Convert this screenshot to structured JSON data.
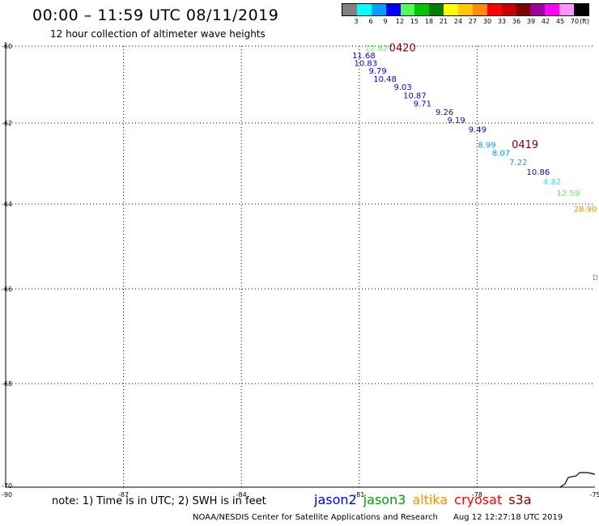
{
  "header": {
    "title": "00:00 – 11:59 UTC 08/11/2019",
    "subtitle": "12 hour collection of altimeter wave heights"
  },
  "legend": {
    "unit": "(ft)",
    "bins": [
      {
        "color": "#808080",
        "label": "3"
      },
      {
        "color": "#00ffff",
        "label": "6"
      },
      {
        "color": "#00a0ff",
        "label": "9"
      },
      {
        "color": "#0000ff",
        "label": "12"
      },
      {
        "color": "#50ff50",
        "label": "15"
      },
      {
        "color": "#00c800",
        "label": "18"
      },
      {
        "color": "#008000",
        "label": "21"
      },
      {
        "color": "#ffff00",
        "label": "24"
      },
      {
        "color": "#ffc800",
        "label": "27"
      },
      {
        "color": "#ff8c00",
        "label": "30"
      },
      {
        "color": "#ff0000",
        "label": "33"
      },
      {
        "color": "#c80000",
        "label": "36"
      },
      {
        "color": "#800000",
        "label": "39"
      },
      {
        "color": "#a000a0",
        "label": "42"
      },
      {
        "color": "#ff00ff",
        "label": "45"
      },
      {
        "color": "#ff96ff",
        "label": "70"
      },
      {
        "color": "#000000",
        "label": ""
      }
    ]
  },
  "map": {
    "lat_labels": [
      "-60",
      "-62",
      "-64",
      "-66",
      "-68",
      "-70"
    ],
    "lon_labels": [
      "-90",
      "-87",
      "-84",
      "-81",
      "-78",
      "-75"
    ],
    "coast_label": "D",
    "times": [
      {
        "text": "0420",
        "lon": -80.24,
        "lat": -60.03,
        "color": "#800000"
      },
      {
        "text": "0419",
        "lon": -77.12,
        "lat": -62.52,
        "color": "#800000"
      }
    ],
    "observations": [
      {
        "text": "12.62",
        "lon": -80.86,
        "lat": -60.03,
        "color": "#50ff50"
      },
      {
        "text": "11.68",
        "lon": -81.18,
        "lat": -60.23,
        "color": "#0000ff"
      },
      {
        "text": "10.83",
        "lon": -81.13,
        "lat": -60.43,
        "color": "#0000ff"
      },
      {
        "text": "9.79",
        "lon": -80.76,
        "lat": -60.63,
        "color": "#0000ff"
      },
      {
        "text": "10.48",
        "lon": -80.64,
        "lat": -60.84,
        "color": "#0000ff"
      },
      {
        "text": "9.03",
        "lon": -80.12,
        "lat": -61.05,
        "color": "#0000ff"
      },
      {
        "text": "10.87",
        "lon": -79.88,
        "lat": -61.27,
        "color": "#0000ff"
      },
      {
        "text": "9.71",
        "lon": -79.62,
        "lat": -61.48,
        "color": "#0000ff"
      },
      {
        "text": "9.26",
        "lon": -79.06,
        "lat": -61.7,
        "color": "#0000ff"
      },
      {
        "text": "9.19",
        "lon": -78.76,
        "lat": -61.92,
        "color": "#0000ff"
      },
      {
        "text": "9.49",
        "lon": -78.22,
        "lat": -62.15,
        "color": "#0000ff"
      },
      {
        "text": "8.99",
        "lon": -77.98,
        "lat": -62.53,
        "color": "#00a0ff"
      },
      {
        "text": "8.07",
        "lon": -77.62,
        "lat": -62.73,
        "color": "#00a0ff"
      },
      {
        "text": "7.22",
        "lon": -77.18,
        "lat": -62.96,
        "color": "#00a0ff"
      },
      {
        "text": "10.86",
        "lon": -76.74,
        "lat": -63.2,
        "color": "#0000ff"
      },
      {
        "text": "4.82",
        "lon": -76.32,
        "lat": -63.44,
        "color": "#00ffff"
      },
      {
        "text": "12.59",
        "lon": -75.98,
        "lat": -63.72,
        "color": "#50ff50"
      },
      {
        "text": "28.90",
        "lon": -75.54,
        "lat": -64.1,
        "color": "#ff8c00"
      }
    ]
  },
  "note": "note: 1) Time is in UTC; 2) SWH is in feet",
  "satellites": [
    {
      "name": "jason2",
      "color": "#0000ff"
    },
    {
      "name": "jason3",
      "color": "#00a000"
    },
    {
      "name": "altika",
      "color": "#ff8c00"
    },
    {
      "name": "cryosat",
      "color": "#ff0000"
    },
    {
      "name": "s3a",
      "color": "#800000"
    }
  ],
  "footer": {
    "credit": "NOAA/NESDIS Center for Satellite Applications and Research",
    "timestamp": "Aug 12 12:27:18 UTC 2019"
  }
}
